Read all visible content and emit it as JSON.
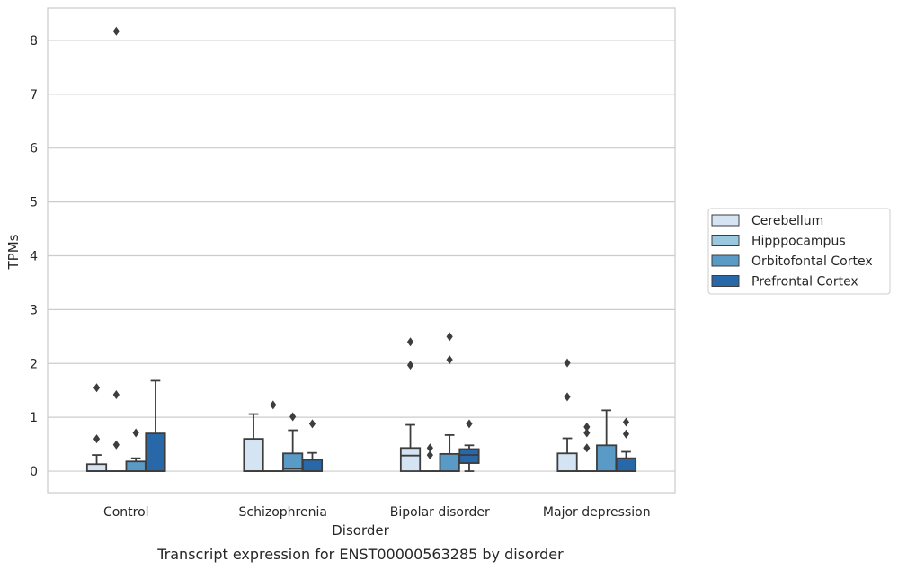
{
  "caption": "Transcript expression for ENST00000563285 by disorder",
  "chart_data": {
    "type": "box",
    "title": "",
    "xlabel": "Disorder",
    "ylabel": "TPMs",
    "ylim": [
      -0.4,
      8.6
    ],
    "yticks": [
      0,
      1,
      2,
      3,
      4,
      5,
      6,
      7,
      8
    ],
    "categories": [
      "Control",
      "Schizophrenia",
      "Bipolar disorder",
      "Major depression"
    ],
    "grid": true,
    "legend_position": "right",
    "series": [
      {
        "name": "Cerebellum",
        "color": "#d4e4f2",
        "boxes": [
          {
            "whisker_low": 0,
            "q1": 0,
            "median": 0,
            "q3": 0.13,
            "whisker_high": 0.3,
            "outliers": [
              0.6,
              1.55
            ]
          },
          {
            "whisker_low": 0,
            "q1": 0,
            "median": 0,
            "q3": 0.6,
            "whisker_high": 1.06,
            "outliers": []
          },
          {
            "whisker_low": 0,
            "q1": 0,
            "median": 0.29,
            "q3": 0.43,
            "whisker_high": 0.86,
            "outliers": [
              1.97,
              2.4
            ]
          },
          {
            "whisker_low": 0,
            "q1": 0,
            "median": 0,
            "q3": 0.33,
            "whisker_high": 0.61,
            "outliers": [
              1.38,
              2.01
            ]
          }
        ]
      },
      {
        "name": "Hipppocampus",
        "color": "#9ac8e0",
        "boxes": [
          {
            "whisker_low": 0,
            "q1": 0,
            "median": 0,
            "q3": 0,
            "whisker_high": 0,
            "outliers": [
              0.49,
              1.42,
              8.17
            ]
          },
          {
            "whisker_low": 0,
            "q1": 0,
            "median": 0,
            "q3": 0,
            "whisker_high": 0,
            "outliers": [
              1.23
            ]
          },
          {
            "whisker_low": 0,
            "q1": 0,
            "median": 0,
            "q3": 0,
            "whisker_high": 0,
            "outliers": [
              0.3,
              0.43
            ]
          },
          {
            "whisker_low": 0,
            "q1": 0,
            "median": 0,
            "q3": 0,
            "whisker_high": 0,
            "outliers": [
              0.43,
              0.71,
              0.82
            ]
          }
        ]
      },
      {
        "name": "Orbitofontal Cortex",
        "color": "#5a9ac6",
        "boxes": [
          {
            "whisker_low": 0,
            "q1": 0,
            "median": 0,
            "q3": 0.18,
            "whisker_high": 0.24,
            "outliers": [
              0.71
            ]
          },
          {
            "whisker_low": 0,
            "q1": 0,
            "median": 0.05,
            "q3": 0.33,
            "whisker_high": 0.76,
            "outliers": [
              1.01
            ]
          },
          {
            "whisker_low": 0,
            "q1": 0,
            "median": 0,
            "q3": 0.32,
            "whisker_high": 0.67,
            "outliers": [
              2.07,
              2.5
            ]
          },
          {
            "whisker_low": 0,
            "q1": 0,
            "median": 0,
            "q3": 0.48,
            "whisker_high": 1.13,
            "outliers": []
          }
        ]
      },
      {
        "name": "Prefrontal Cortex",
        "color": "#2867a8",
        "boxes": [
          {
            "whisker_low": 0,
            "q1": 0,
            "median": 0,
            "q3": 0.7,
            "whisker_high": 1.68,
            "outliers": []
          },
          {
            "whisker_low": 0,
            "q1": 0,
            "median": 0,
            "q3": 0.21,
            "whisker_high": 0.34,
            "outliers": [
              0.88
            ]
          },
          {
            "whisker_low": 0,
            "q1": 0.15,
            "median": 0.3,
            "q3": 0.41,
            "whisker_high": 0.48,
            "outliers": [
              0.88
            ]
          },
          {
            "whisker_low": 0,
            "q1": 0,
            "median": 0,
            "q3": 0.24,
            "whisker_high": 0.36,
            "outliers": [
              0.69,
              0.91
            ]
          }
        ]
      }
    ]
  }
}
